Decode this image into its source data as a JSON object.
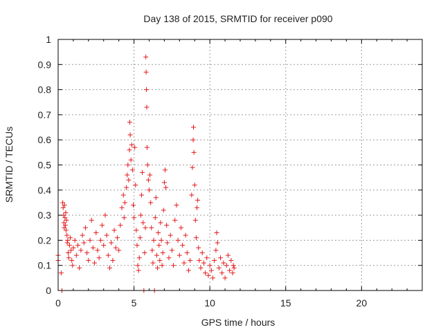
{
  "chart_data": {
    "type": "scatter",
    "title": "Day 138 of 2015, SRMTID for receiver p090",
    "xlabel": "GPS time / hours",
    "ylabel": "SRMTID / TECUs",
    "xlim": [
      0,
      24
    ],
    "ylim": [
      0,
      1
    ],
    "xticks": [
      0,
      5,
      10,
      15,
      20
    ],
    "yticks": [
      0,
      0.1,
      0.2,
      0.3,
      0.4,
      0.5,
      0.6,
      0.7,
      0.8,
      0.9,
      1
    ],
    "xtick_labels": [
      "0",
      "5",
      "10",
      "15",
      "20"
    ],
    "ytick_labels": [
      "0",
      "0.1",
      "0.2",
      "0.3",
      "0.4",
      "0.5",
      "0.6",
      "0.7",
      "0.8",
      "0.9",
      "1"
    ],
    "grid": true,
    "marker": "plus",
    "color": "#e41a1c",
    "series": [
      {
        "values": [
          [
            0.0,
            0.14
          ],
          [
            0.0,
            0.12
          ],
          [
            0.2,
            0.07
          ],
          [
            0.25,
            0.0
          ],
          [
            0.3,
            0.35
          ],
          [
            0.33,
            0.33
          ],
          [
            0.36,
            0.3
          ],
          [
            0.38,
            0.27
          ],
          [
            0.4,
            0.25
          ],
          [
            0.42,
            0.34
          ],
          [
            0.45,
            0.29
          ],
          [
            0.48,
            0.26
          ],
          [
            0.5,
            0.31
          ],
          [
            0.52,
            0.24
          ],
          [
            0.55,
            0.28
          ],
          [
            0.58,
            0.22
          ],
          [
            0.6,
            0.19
          ],
          [
            0.63,
            0.2
          ],
          [
            0.66,
            0.15
          ],
          [
            0.7,
            0.13
          ],
          [
            0.75,
            0.18
          ],
          [
            0.8,
            0.21
          ],
          [
            0.85,
            0.16
          ],
          [
            0.9,
            0.12
          ],
          [
            0.95,
            0.1
          ],
          [
            1.0,
            0.17
          ],
          [
            1.1,
            0.2
          ],
          [
            1.2,
            0.14
          ],
          [
            1.3,
            0.18
          ],
          [
            1.4,
            0.09
          ],
          [
            1.5,
            0.16
          ],
          [
            1.6,
            0.22
          ],
          [
            1.7,
            0.19
          ],
          [
            1.8,
            0.25
          ],
          [
            1.9,
            0.15
          ],
          [
            2.0,
            0.12
          ],
          [
            2.1,
            0.2
          ],
          [
            2.2,
            0.28
          ],
          [
            2.3,
            0.17
          ],
          [
            2.4,
            0.11
          ],
          [
            2.5,
            0.23
          ],
          [
            2.6,
            0.16
          ],
          [
            2.7,
            0.13
          ],
          [
            2.8,
            0.2
          ],
          [
            2.9,
            0.26
          ],
          [
            3.0,
            0.18
          ],
          [
            3.1,
            0.3
          ],
          [
            3.2,
            0.22
          ],
          [
            3.3,
            0.14
          ],
          [
            3.4,
            0.09
          ],
          [
            3.5,
            0.19
          ],
          [
            3.6,
            0.12
          ],
          [
            3.7,
            0.24
          ],
          [
            3.8,
            0.17
          ],
          [
            3.9,
            0.21
          ],
          [
            4.0,
            0.16
          ],
          [
            4.1,
            0.26
          ],
          [
            4.2,
            0.33
          ],
          [
            4.3,
            0.38
          ],
          [
            4.35,
            0.29
          ],
          [
            4.4,
            0.35
          ],
          [
            4.5,
            0.41
          ],
          [
            4.55,
            0.46
          ],
          [
            4.6,
            0.5
          ],
          [
            4.65,
            0.44
          ],
          [
            4.7,
            0.56
          ],
          [
            4.72,
            0.67
          ],
          [
            4.75,
            0.62
          ],
          [
            4.8,
            0.52
          ],
          [
            4.85,
            0.58
          ],
          [
            4.9,
            0.48
          ],
          [
            4.95,
            0.34
          ],
          [
            5.0,
            0.29
          ],
          [
            5.05,
            0.57
          ],
          [
            5.1,
            0.42
          ],
          [
            5.15,
            0.24
          ],
          [
            5.2,
            0.18
          ],
          [
            5.25,
            0.1
          ],
          [
            5.3,
            0.08
          ],
          [
            5.35,
            0.13
          ],
          [
            5.4,
            0.21
          ],
          [
            5.45,
            0.3
          ],
          [
            5.5,
            0.38
          ],
          [
            5.55,
            0.47
          ],
          [
            5.6,
            0.27
          ],
          [
            5.65,
            0.0
          ],
          [
            5.7,
            0.15
          ],
          [
            5.75,
            0.25
          ],
          [
            5.78,
            0.93
          ],
          [
            5.8,
            0.87
          ],
          [
            5.82,
            0.8
          ],
          [
            5.84,
            0.73
          ],
          [
            5.86,
            0.57
          ],
          [
            5.9,
            0.5
          ],
          [
            5.95,
            0.44
          ],
          [
            6.0,
            0.4
          ],
          [
            6.05,
            0.46
          ],
          [
            6.1,
            0.35
          ],
          [
            6.15,
            0.25
          ],
          [
            6.2,
            0.16
          ],
          [
            6.25,
            0.11
          ],
          [
            6.3,
            0.2
          ],
          [
            6.35,
            0.0
          ],
          [
            6.4,
            0.29
          ],
          [
            6.45,
            0.37
          ],
          [
            6.5,
            0.14
          ],
          [
            6.55,
            0.09
          ],
          [
            6.6,
            0.23
          ],
          [
            6.65,
            0.18
          ],
          [
            6.7,
            0.12
          ],
          [
            6.75,
            0.27
          ],
          [
            6.8,
            0.2
          ],
          [
            6.85,
            0.1
          ],
          [
            6.9,
            0.15
          ],
          [
            6.95,
            0.32
          ],
          [
            7.0,
            0.43
          ],
          [
            7.05,
            0.48
          ],
          [
            7.1,
            0.41
          ],
          [
            7.15,
            0.26
          ],
          [
            7.2,
            0.19
          ],
          [
            7.3,
            0.13
          ],
          [
            7.4,
            0.22
          ],
          [
            7.5,
            0.16
          ],
          [
            7.6,
            0.1
          ],
          [
            7.7,
            0.28
          ],
          [
            7.8,
            0.34
          ],
          [
            7.9,
            0.2
          ],
          [
            8.0,
            0.14
          ],
          [
            8.1,
            0.25
          ],
          [
            8.2,
            0.18
          ],
          [
            8.3,
            0.11
          ],
          [
            8.4,
            0.22
          ],
          [
            8.5,
            0.15
          ],
          [
            8.6,
            0.08
          ],
          [
            8.7,
            0.12
          ],
          [
            8.8,
            0.38
          ],
          [
            8.85,
            0.49
          ],
          [
            8.9,
            0.6
          ],
          [
            8.92,
            0.65
          ],
          [
            8.95,
            0.55
          ],
          [
            9.0,
            0.42
          ],
          [
            9.05,
            0.28
          ],
          [
            9.1,
            0.21
          ],
          [
            9.15,
            0.33
          ],
          [
            9.2,
            0.36
          ],
          [
            9.25,
            0.17
          ],
          [
            9.3,
            0.12
          ],
          [
            9.4,
            0.09
          ],
          [
            9.5,
            0.15
          ],
          [
            9.6,
            0.11
          ],
          [
            9.7,
            0.07
          ],
          [
            9.8,
            0.13
          ],
          [
            9.9,
            0.06
          ],
          [
            10.0,
            0.1
          ],
          [
            10.1,
            0.08
          ],
          [
            10.2,
            0.05
          ],
          [
            10.3,
            0.12
          ],
          [
            10.4,
            0.16
          ],
          [
            10.45,
            0.23
          ],
          [
            10.5,
            0.19
          ],
          [
            10.6,
            0.09
          ],
          [
            10.7,
            0.13
          ],
          [
            10.8,
            0.07
          ],
          [
            10.9,
            0.11
          ],
          [
            11.0,
            0.05
          ],
          [
            11.1,
            0.1
          ],
          [
            11.2,
            0.14
          ],
          [
            11.3,
            0.08
          ],
          [
            11.4,
            0.12
          ],
          [
            11.5,
            0.07
          ],
          [
            11.55,
            0.1
          ],
          [
            11.6,
            0.09
          ]
        ]
      }
    ]
  }
}
